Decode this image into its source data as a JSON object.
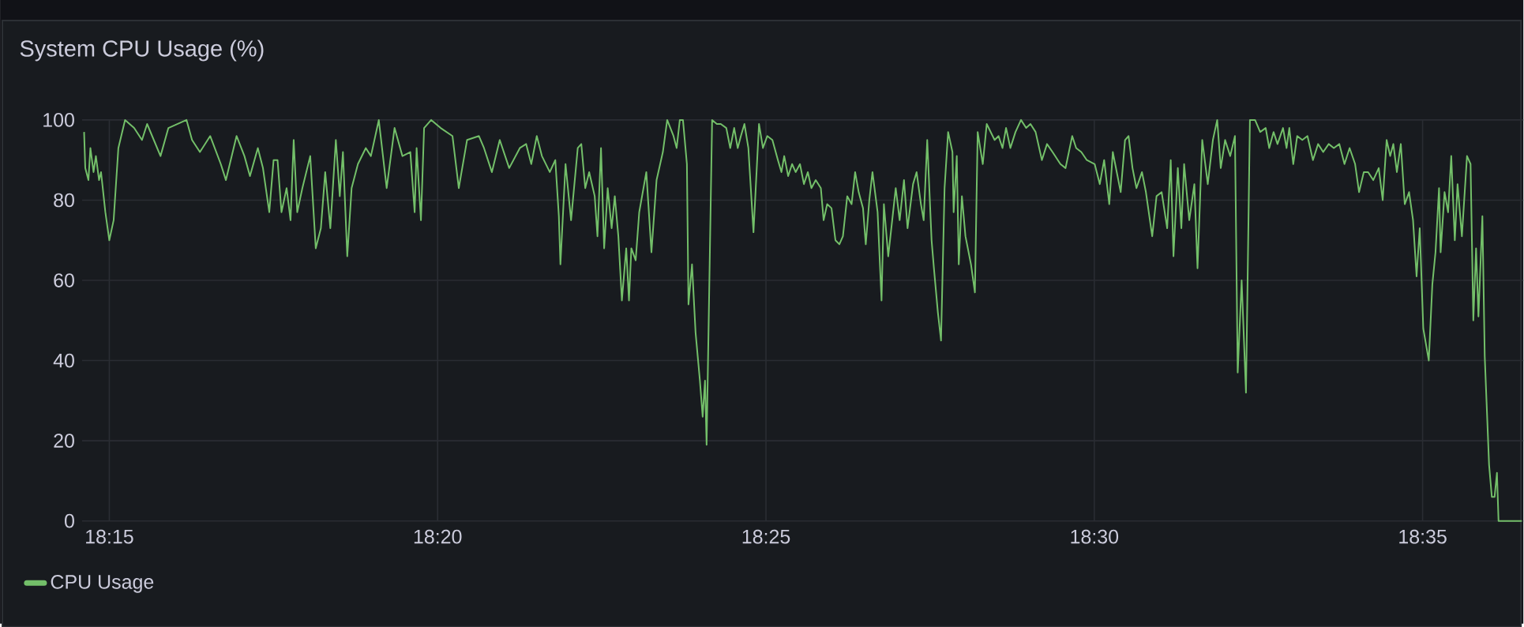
{
  "chart_data": {
    "type": "line",
    "title": "System CPU Usage (%)",
    "x": [
      18.2436,
      18.2439,
      18.2447,
      18.2452,
      18.246,
      18.2466,
      18.2474,
      18.2479,
      18.249,
      18.25,
      18.2511,
      18.2523,
      18.254,
      18.2563,
      18.2583,
      18.2596,
      18.263,
      18.265,
      18.2696,
      18.271,
      18.273,
      18.2756,
      18.2783,
      18.2796,
      18.2823,
      18.2843,
      18.2857,
      18.2877,
      18.289,
      18.2906,
      18.2917,
      18.2927,
      18.2937,
      18.295,
      18.296,
      18.2968,
      18.2977,
      18.299,
      18.301,
      18.3024,
      18.3037,
      18.3048,
      18.3061,
      18.3075,
      18.3085,
      18.3093,
      18.3104,
      18.3115,
      18.3131,
      18.3151,
      18.3164,
      18.3184,
      18.3204,
      18.3224,
      18.3244,
      18.3264,
      18.3275,
      18.328,
      18.3291,
      18.3299,
      18.3317,
      18.3341,
      18.3371,
      18.3387,
      18.3408,
      18.3438,
      18.3451,
      18.3471,
      18.3491,
      18.3515,
      18.3542,
      18.3558,
      18.3571,
      18.3585,
      18.3598,
      18.3618,
      18.3632,
      18.3641,
      18.3645,
      18.3658,
      18.3672,
      18.3689,
      18.3698,
      18.3708,
      18.3718,
      18.3732,
      18.3739,
      18.3748,
      18.3756,
      18.3765,
      18.3775,
      18.3783,
      18.3792,
      18.3801,
      18.3812,
      18.3819,
      18.3825,
      18.3836,
      18.3845,
      18.3863,
      18.3876,
      18.3889,
      18.3905,
      18.3916,
      18.3932,
      18.394,
      18.3948,
      18.3956,
      18.3966,
      18.397,
      18.3979,
      18.3988,
      18.3999,
      18.4006,
      18.4012,
      18.4016,
      18.403,
      18.4042,
      18.4052,
      18.4066,
      18.4076,
      18.4086,
      18.4095,
      18.4103,
      18.4112,
      18.4122,
      18.4135,
      18.4149,
      18.4159,
      18.417,
      18.4183,
      18.4197,
      18.4206,
      18.4213,
      18.4223,
      18.4233,
      18.4242,
      18.4253,
      18.4263,
      18.4273,
      18.4282,
      18.4293,
      18.4306,
      18.4313,
      18.4322,
      18.4333,
      18.4343,
      18.4353,
      18.4362,
      18.4373,
      18.4384,
      18.4393,
      18.4402,
      18.4413,
      18.442,
      18.4429,
      18.4437,
      18.445,
      18.446,
      18.4466,
      18.4477,
      18.4486,
      18.4496,
      18.4506,
      18.4517,
      18.4526,
      18.454,
      18.4549,
      18.456,
      18.4567,
      18.4576,
      18.4587,
      18.4593,
      18.4603,
      18.4611,
      18.462,
      18.4629,
      18.464,
      18.4643,
      18.4651,
      18.4656,
      18.4664,
      18.4673,
      18.4687,
      18.4697,
      18.4704,
      18.4717,
      18.4727,
      18.4747,
      18.4757,
      18.4767,
      18.4776,
      18.4787,
      18.48,
      18.4814,
      18.4827,
      18.4838,
      18.4851,
      18.4867,
      18.488,
      18.4894,
      18.4914,
      18.4927,
      18.4944,
      18.4954,
      18.4967,
      18.4981,
      18.5001,
      18.5014,
      18.5025,
      18.5038,
      18.5047,
      18.5067,
      18.5078,
      18.5087,
      18.5097,
      18.5107,
      18.5121,
      18.5131,
      18.5147,
      18.5158,
      18.5171,
      18.5185,
      18.5194,
      18.5201,
      18.5212,
      18.5221,
      18.5228,
      18.5241,
      18.5254,
      18.5262,
      18.5274,
      18.5288,
      18.5301,
      18.5312,
      18.5321,
      18.5332,
      18.5345,
      18.5357,
      18.5364,
      18.5374,
      18.5385,
      18.5395,
      18.5408,
      18.5421,
      18.5435,
      18.5444,
      18.5455,
      18.5465,
      18.5479,
      18.5488,
      18.5495,
      18.5505,
      18.5515,
      18.5528,
      18.5541,
      18.5555,
      18.5568,
      18.5581,
      18.5595,
      18.5608,
      18.5622,
      18.5635,
      18.5648,
      18.5662,
      18.5672,
      18.5684,
      18.5695,
      18.5708,
      18.5722,
      18.5732,
      18.5742,
      18.5751,
      18.5759,
      18.5768,
      18.5778,
      18.5788,
      18.5799,
      18.5809,
      18.5818,
      18.5826,
      18.5835,
      18.5849,
      18.5858,
      18.5866,
      18.5875,
      18.5879,
      18.5889,
      18.5898,
      18.5906,
      18.5915,
      18.5922,
      18.5933,
      18.5946,
      18.5955,
      18.5962,
      18.5969,
      18.5975,
      18.5985,
      18.5991,
      18.6002,
      18.6009,
      18.6016,
      18.6022,
      18.6026,
      18.6042,
      18.6069,
      18.6085
    ],
    "series": [
      {
        "name": "CPU Usage",
        "color": "#73bf69",
        "values": [
          97,
          88,
          85,
          93,
          87,
          91,
          85,
          87,
          77,
          70,
          75,
          93,
          100,
          98,
          95,
          99,
          91,
          98,
          100,
          95,
          92,
          96,
          89,
          85,
          96,
          91,
          86,
          93,
          88,
          77,
          90,
          90,
          77,
          83,
          75,
          95,
          77,
          83,
          91,
          68,
          73,
          87,
          73,
          95,
          81,
          92,
          66,
          83,
          89,
          93,
          91,
          100,
          83,
          98,
          91,
          92,
          77,
          93,
          75,
          98,
          100,
          98,
          96,
          83,
          95,
          96,
          93,
          87,
          95,
          88,
          93,
          94,
          89,
          96,
          91,
          87,
          90,
          76,
          64,
          89,
          75,
          93,
          94,
          83,
          87,
          81,
          71,
          93,
          68,
          83,
          73,
          81,
          71,
          55,
          68,
          55,
          68,
          65,
          77,
          87,
          67,
          85,
          92,
          100,
          96,
          93,
          100,
          100,
          89,
          54,
          64,
          47,
          35,
          26,
          35,
          19,
          100,
          99,
          99,
          98,
          93,
          98,
          93,
          96,
          99,
          93,
          72,
          99,
          93,
          96,
          95,
          90,
          87,
          91,
          86,
          89,
          87,
          89,
          84,
          87,
          83,
          85,
          83,
          75,
          79,
          78,
          70,
          69,
          71,
          81,
          79,
          87,
          82,
          78,
          69,
          80,
          87,
          77,
          55,
          79,
          66,
          74,
          83,
          75,
          85,
          73,
          84,
          87,
          79,
          75,
          95,
          70,
          63,
          52,
          45,
          83,
          97,
          92,
          77,
          91,
          64,
          81,
          71,
          64,
          57,
          97,
          89,
          99,
          95,
          96,
          93,
          98,
          93,
          97,
          100,
          98,
          99,
          97,
          90,
          94,
          92,
          89,
          88,
          96,
          93,
          92,
          90,
          89,
          84,
          90,
          79,
          92,
          82,
          95,
          96,
          88,
          83,
          87,
          82,
          71,
          81,
          82,
          73,
          90,
          66,
          88,
          73,
          89,
          75,
          84,
          63,
          95,
          84,
          95,
          100,
          88,
          95,
          91,
          96,
          37,
          60,
          32,
          100,
          100,
          97,
          98,
          93,
          97,
          94,
          98,
          93,
          98,
          89,
          96,
          95,
          96,
          90,
          94,
          92,
          94,
          93,
          94,
          89,
          93,
          89,
          82,
          87,
          87,
          85,
          88,
          80,
          95,
          91,
          94,
          87,
          94,
          79,
          82,
          75,
          61,
          73,
          48,
          40,
          59,
          67,
          83,
          67,
          82,
          77,
          91,
          70,
          84,
          71,
          91,
          89,
          50,
          68,
          51,
          76,
          41,
          14,
          6,
          6,
          12,
          0,
          0,
          0,
          0
        ]
      }
    ],
    "xlim": [
      18.2431,
      18.6089
    ],
    "xticks": [
      {
        "value": 18.25,
        "label": "18:15"
      },
      {
        "value": 18.33333,
        "label": "18:20"
      },
      {
        "value": 18.41667,
        "label": "18:25"
      },
      {
        "value": 18.5,
        "label": "18:30"
      },
      {
        "value": 18.58333,
        "label": "18:35"
      }
    ],
    "ylim": [
      0,
      100
    ],
    "yticks": [
      0,
      20,
      40,
      60,
      80,
      100
    ],
    "grid": true,
    "legend": "bottom"
  }
}
